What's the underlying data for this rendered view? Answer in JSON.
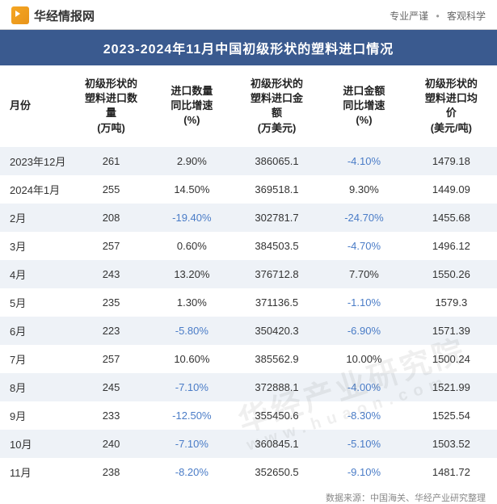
{
  "header": {
    "logo_text": "华经情报网",
    "tagline1": "专业严谨",
    "tagline2": "客观科学"
  },
  "title": "2023-2024年11月中国初级形状的塑料进口情况",
  "table": {
    "columns": [
      {
        "label": "月份",
        "class": "col-month"
      },
      {
        "label": "初级形状的\n塑料进口数\n量\n(万吨)",
        "class": "col-qty"
      },
      {
        "label": "进口数量\n同比增速\n(%)",
        "class": "col-qty-growth"
      },
      {
        "label": "初级形状的\n塑料进口金\n额\n(万美元)",
        "class": "col-amount"
      },
      {
        "label": "进口金额\n同比增速\n(%)",
        "class": "col-amount-growth"
      },
      {
        "label": "初级形状的\n塑料进口均\n价\n(美元/吨)",
        "class": "col-price"
      }
    ],
    "rows": [
      {
        "month": "2023年12月",
        "qty": "261",
        "qty_growth": "2.90%",
        "qty_neg": false,
        "amount": "386065.1",
        "amount_growth": "-4.10%",
        "amount_neg": true,
        "price": "1479.18"
      },
      {
        "month": "2024年1月",
        "qty": "255",
        "qty_growth": "14.50%",
        "qty_neg": false,
        "amount": "369518.1",
        "amount_growth": "9.30%",
        "amount_neg": false,
        "price": "1449.09"
      },
      {
        "month": "2月",
        "qty": "208",
        "qty_growth": "-19.40%",
        "qty_neg": true,
        "amount": "302781.7",
        "amount_growth": "-24.70%",
        "amount_neg": true,
        "price": "1455.68"
      },
      {
        "month": "3月",
        "qty": "257",
        "qty_growth": "0.60%",
        "qty_neg": false,
        "amount": "384503.5",
        "amount_growth": "-4.70%",
        "amount_neg": true,
        "price": "1496.12"
      },
      {
        "month": "4月",
        "qty": "243",
        "qty_growth": "13.20%",
        "qty_neg": false,
        "amount": "376712.8",
        "amount_growth": "7.70%",
        "amount_neg": false,
        "price": "1550.26"
      },
      {
        "month": "5月",
        "qty": "235",
        "qty_growth": "1.30%",
        "qty_neg": false,
        "amount": "371136.5",
        "amount_growth": "-1.10%",
        "amount_neg": true,
        "price": "1579.3"
      },
      {
        "month": "6月",
        "qty": "223",
        "qty_growth": "-5.80%",
        "qty_neg": true,
        "amount": "350420.3",
        "amount_growth": "-6.90%",
        "amount_neg": true,
        "price": "1571.39"
      },
      {
        "month": "7月",
        "qty": "257",
        "qty_growth": "10.60%",
        "qty_neg": false,
        "amount": "385562.9",
        "amount_growth": "10.00%",
        "amount_neg": false,
        "price": "1500.24"
      },
      {
        "month": "8月",
        "qty": "245",
        "qty_growth": "-7.10%",
        "qty_neg": true,
        "amount": "372888.1",
        "amount_growth": "-4.00%",
        "amount_neg": true,
        "price": "1521.99"
      },
      {
        "month": "9月",
        "qty": "233",
        "qty_growth": "-12.50%",
        "qty_neg": true,
        "amount": "355450.6",
        "amount_growth": "-8.30%",
        "amount_neg": true,
        "price": "1525.54"
      },
      {
        "month": "10月",
        "qty": "240",
        "qty_growth": "-7.10%",
        "qty_neg": true,
        "amount": "360845.1",
        "amount_growth": "-5.10%",
        "amount_neg": true,
        "price": "1503.52"
      },
      {
        "month": "11月",
        "qty": "238",
        "qty_growth": "-8.20%",
        "qty_neg": true,
        "amount": "352650.5",
        "amount_growth": "-9.10%",
        "amount_neg": true,
        "price": "1481.72"
      }
    ]
  },
  "footer": "数据来源：中国海关、华经产业研究整理",
  "watermark": {
    "line1": "华经产业研究院",
    "line2": "www.huaon.com"
  },
  "colors": {
    "title_bg": "#3a5a8f",
    "row_alt_bg": "#eef2f7",
    "neg_color": "#4a7cc7",
    "text_color": "#333333"
  }
}
